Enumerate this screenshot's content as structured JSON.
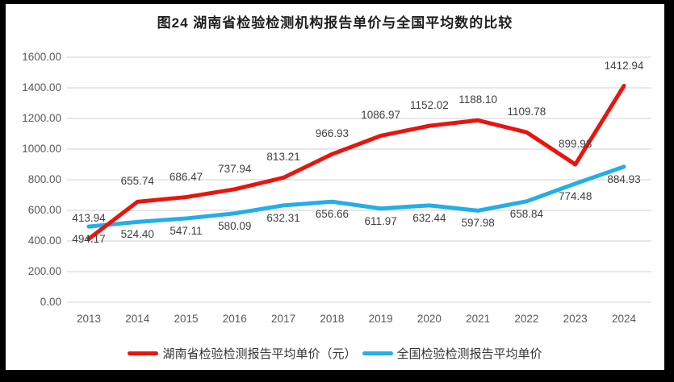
{
  "page": {
    "background": "#000000",
    "plot_background": "#ffffff"
  },
  "chart_data": {
    "type": "line",
    "title": "图24 湖南省检验检测机构报告单价与全国平均数的比较",
    "categories": [
      "2013",
      "2014",
      "2015",
      "2016",
      "2017",
      "2018",
      "2019",
      "2020",
      "2021",
      "2022",
      "2023",
      "2024"
    ],
    "series": [
      {
        "name": "湖南省检验检测报告平均单价（元）",
        "color": "#e8150f",
        "label_position": "above",
        "values": [
          413.94,
          655.74,
          686.47,
          737.94,
          813.21,
          966.93,
          1086.97,
          1152.02,
          1188.1,
          1109.78,
          899.93,
          1412.94
        ]
      },
      {
        "name": "全国检验检测报告平均单价",
        "color": "#24aee8",
        "label_position": "below",
        "values": [
          494.17,
          524.4,
          547.11,
          580.09,
          632.31,
          656.66,
          611.97,
          632.44,
          597.98,
          658.84,
          774.48,
          884.93
        ]
      }
    ],
    "xlabel": "",
    "ylabel": "",
    "ylim": [
      0,
      1600
    ],
    "ytick_step": 200,
    "ytick_labels": [
      "0.00",
      "200.00",
      "400.00",
      "600.00",
      "800.00",
      "1000.00",
      "1200.00",
      "1400.00",
      "1600.00"
    ],
    "grid": true,
    "legend_position": "bottom",
    "colors": {
      "gridline": "#d9d9d9",
      "axis_label": "#595959",
      "data_label": "#404040",
      "title": "#1f1f1f"
    }
  }
}
